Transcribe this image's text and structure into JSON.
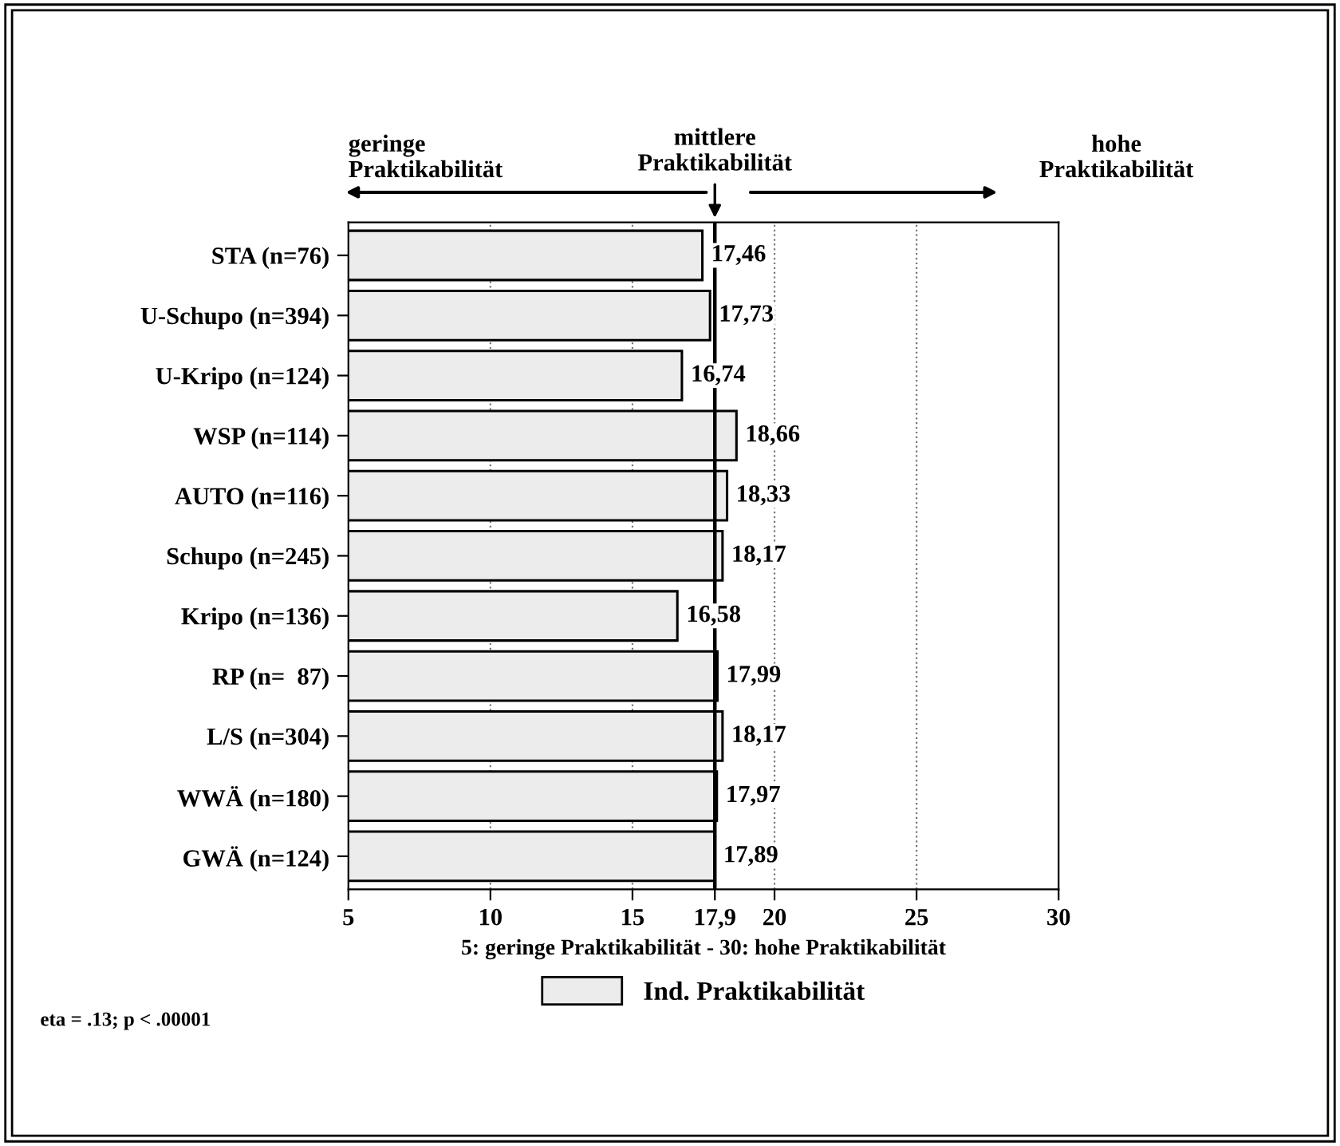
{
  "chart_data": {
    "type": "bar",
    "orientation": "horizontal",
    "xlabel": "5: geringe Praktikabilität - 30: hohe Praktikabilität",
    "categories": [
      "STA (n=76)",
      "U-Schupo (n=394)",
      "U-Kripo (n=124)",
      "WSP (n=114)",
      "AUTO (n=116)",
      "Schupo (n=245)",
      "Kripo (n=136)",
      "RP (n=  87)",
      "L/S (n=304)",
      "WWÄ (n=180)",
      "GWÄ (n=124)"
    ],
    "series": [
      {
        "name": "Ind. Praktikabilität",
        "color": "#ececec",
        "values": [
          17.46,
          17.73,
          16.74,
          18.66,
          18.33,
          18.17,
          16.58,
          17.99,
          18.17,
          17.97,
          17.89
        ],
        "value_labels": [
          "17,46",
          "17,73",
          "16,74",
          "18,66",
          "18,33",
          "18,17",
          "16,58",
          "17,99",
          "18,17",
          "17,97",
          "17,89"
        ]
      }
    ],
    "xlim": [
      5,
      30
    ],
    "xticks": [
      5,
      10,
      15,
      {
        "value": 17.9,
        "label": "17,9"
      },
      20,
      25,
      30
    ],
    "grid": "x",
    "ref_lines": [
      {
        "axis": "x",
        "value": 17.9,
        "label": "mittlere\nPraktikabilität",
        "color": "#000000",
        "line_style": "solid"
      }
    ],
    "legend": "bottom",
    "annotations": [
      "geringe\nPraktikabilität",
      "hohe\nPraktikabilität",
      "eta = .13; p < .00001"
    ]
  }
}
